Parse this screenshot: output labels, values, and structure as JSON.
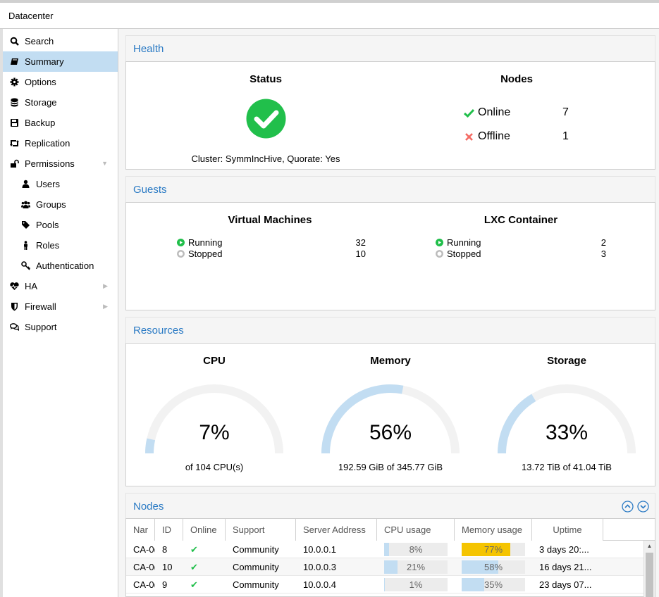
{
  "window": {
    "title": "Datacenter"
  },
  "sidebar": {
    "items": [
      {
        "label": "Search",
        "icon": "search-icon"
      },
      {
        "label": "Summary",
        "icon": "book-icon",
        "selected": true
      },
      {
        "label": "Options",
        "icon": "gear-icon"
      },
      {
        "label": "Storage",
        "icon": "database-icon"
      },
      {
        "label": "Backup",
        "icon": "floppy-icon"
      },
      {
        "label": "Replication",
        "icon": "retweet-icon"
      },
      {
        "label": "Permissions",
        "icon": "unlock-icon",
        "expanded": true
      },
      {
        "label": "Users",
        "icon": "user-icon",
        "sub": true
      },
      {
        "label": "Groups",
        "icon": "users-icon",
        "sub": true
      },
      {
        "label": "Pools",
        "icon": "tags-icon",
        "sub": true
      },
      {
        "label": "Roles",
        "icon": "male-icon",
        "sub": true
      },
      {
        "label": "Authentication",
        "icon": "key-icon",
        "sub": true
      },
      {
        "label": "HA",
        "icon": "heartbeat-icon",
        "collapsed": true
      },
      {
        "label": "Firewall",
        "icon": "shield-icon",
        "collapsed": true
      },
      {
        "label": "Support",
        "icon": "comments-icon"
      }
    ]
  },
  "health": {
    "title": "Health",
    "status_title": "Status",
    "cluster_text": "Cluster: SymmIncHive, Quorate: Yes",
    "nodes_title": "Nodes",
    "online_label": "Online",
    "online_count": "7",
    "offline_label": "Offline",
    "offline_count": "1"
  },
  "guests": {
    "title": "Guests",
    "vm_title": "Virtual Machines",
    "vm_running_label": "Running",
    "vm_running": "32",
    "vm_stopped_label": "Stopped",
    "vm_stopped": "10",
    "lxc_title": "LXC Container",
    "lxc_running_label": "Running",
    "lxc_running": "2",
    "lxc_stopped_label": "Stopped",
    "lxc_stopped": "3"
  },
  "resources": {
    "title": "Resources",
    "cpu": {
      "title": "CPU",
      "value": "7%",
      "fraction": 0.07,
      "sub": "of 104 CPU(s)"
    },
    "memory": {
      "title": "Memory",
      "value": "56%",
      "fraction": 0.56,
      "sub": "192.59 GiB of 345.77 GiB"
    },
    "storage": {
      "title": "Storage",
      "value": "33%",
      "fraction": 0.33,
      "sub": "13.72 TiB of 41.04 TiB"
    }
  },
  "nodes": {
    "title": "Nodes",
    "columns": [
      "Nar",
      "ID",
      "Online",
      "Support",
      "Server Address",
      "CPU usage",
      "Memory usage",
      "Uptime"
    ],
    "rows": [
      {
        "name": "CA-0(",
        "id": "8",
        "online": "✔",
        "support": "Community",
        "address": "10.0.0.1",
        "cpu": "8%",
        "cpu_frac": 0.08,
        "mem": "77%",
        "mem_frac": 0.77,
        "mem_warn": true,
        "uptime": "3 days 20:..."
      },
      {
        "name": "CA-0(",
        "id": "10",
        "online": "✔",
        "support": "Community",
        "address": "10.0.0.3",
        "cpu": "21%",
        "cpu_frac": 0.21,
        "mem": "58%",
        "mem_frac": 0.58,
        "mem_warn": false,
        "uptime": "16 days 21..."
      },
      {
        "name": "CA-0(",
        "id": "9",
        "online": "✔",
        "support": "Community",
        "address": "10.0.0.4",
        "cpu": "1%",
        "cpu_frac": 0.01,
        "mem": "35%",
        "mem_frac": 0.35,
        "mem_warn": false,
        "uptime": "23 days 07..."
      }
    ]
  },
  "colors": {
    "accent": "#2a7ac4",
    "ok": "#21bf4b",
    "error": "#f46a63",
    "warn": "#f5c400",
    "selected": "#c2ddf2",
    "gauge_fill": "#c2ddf2",
    "gauge_track": "#f2f2f2"
  }
}
